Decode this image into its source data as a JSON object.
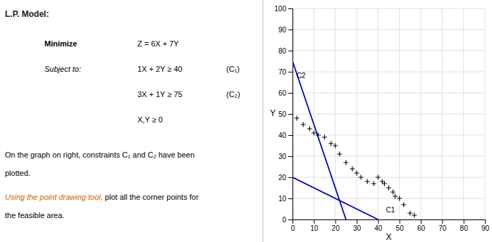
{
  "chart_data": {
    "type": "line",
    "title": "L.P. Model:",
    "xlabel": "X",
    "ylabel": "Y",
    "annotations": [
      {
        "text": "Minimize"
      },
      {
        "text": "Z = 6X + 7Y"
      },
      {
        "text": "Subject to:"
      },
      {
        "text": "1X + 2Y ≥ 40"
      },
      {
        "text": "(C₁)"
      },
      {
        "text": "3X + 1Y ≥ 75"
      },
      {
        "text": "(C₂)"
      },
      {
        "text": "X,Y ≥ 0"
      },
      {
        "text": "On the graph on right, constraints C₁ and C₂ have been"
      },
      {
        "text": "plotted."
      },
      {
        "text": "Using the point drawing tool,",
        "color": "#cc6600"
      },
      {
        "text": " plot all the corner points for"
      },
      {
        "text": "the feasible area."
      },
      {
        "text": "C1",
        "x": 43,
        "y": 2.5
      },
      {
        "text": "C2",
        "x": 1.2,
        "y": 70
      }
    ],
    "series": [
      {
        "type": "line",
        "color": "#0000cc",
        "x": [
          0,
          40
        ],
        "values": [
          20,
          0
        ]
      },
      {
        "type": "line",
        "color": "#0000cc",
        "x": [
          0,
          25
        ],
        "values": [
          75,
          0
        ]
      },
      {
        "type": "scatter",
        "color": "#000000",
        "marker": "plus",
        "x": [
          2,
          5,
          8,
          10,
          12,
          15,
          18,
          20,
          22,
          25,
          28,
          30,
          32,
          35,
          38,
          40,
          42,
          43,
          45,
          47,
          48,
          50,
          52,
          55,
          57
        ],
        "values": [
          48,
          45,
          43,
          41,
          40,
          39,
          36,
          35,
          31,
          27,
          24,
          22,
          20,
          18,
          17,
          20,
          18,
          17,
          15,
          13,
          11,
          10,
          7,
          3,
          2
        ]
      }
    ],
    "xlim": [
      0,
      90
    ],
    "ylim": [
      0,
      100
    ],
    "xticks": [
      0,
      10,
      20,
      30,
      40,
      50,
      60,
      70,
      80,
      90
    ],
    "yticks": [
      0,
      10,
      20,
      30,
      40,
      50,
      60,
      70,
      80,
      90,
      100
    ],
    "grid": true
  }
}
